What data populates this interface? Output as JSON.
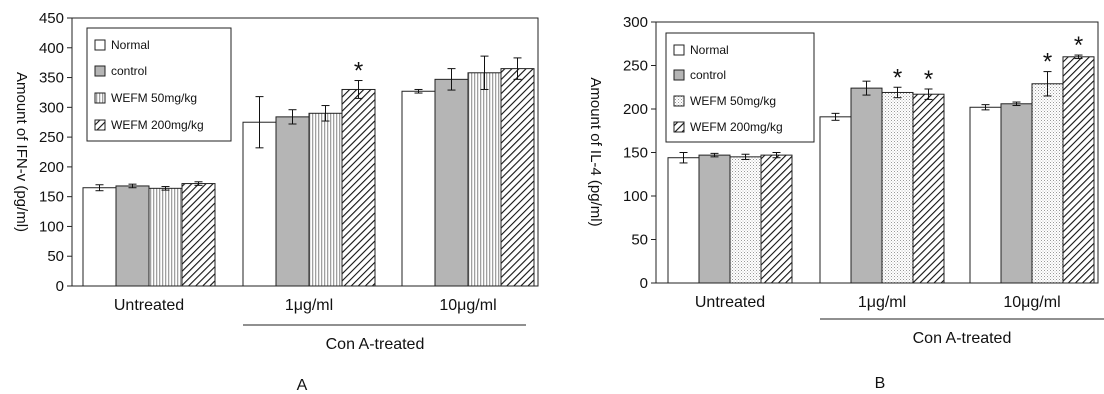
{
  "chart_data": [
    {
      "type": "bar",
      "panel_label": "A",
      "ylabel": "Amount of IFN-v (pg/ml)",
      "ylim": [
        0,
        450
      ],
      "yticks": [
        0,
        50,
        100,
        150,
        200,
        250,
        300,
        350,
        400,
        450
      ],
      "categories": [
        "Untreated",
        "1μg/ml",
        "10μg/ml"
      ],
      "group_label": "Con A-treated",
      "legend_position": "top-left",
      "series": [
        {
          "name": "Normal",
          "values": [
            165,
            275,
            327
          ],
          "errors": [
            5,
            43,
            3
          ],
          "pattern": "white",
          "significant": [
            false,
            false,
            false
          ]
        },
        {
          "name": "control",
          "values": [
            168,
            284,
            347
          ],
          "errors": [
            3,
            12,
            18
          ],
          "pattern": "gray",
          "significant": [
            false,
            false,
            false
          ]
        },
        {
          "name": "WEFM 50mg/kg",
          "values": [
            164,
            290,
            358
          ],
          "errors": [
            3,
            13,
            28
          ],
          "pattern": "vertical",
          "significant": [
            false,
            false,
            false
          ]
        },
        {
          "name": "WEFM 200mg/kg",
          "values": [
            172,
            330,
            365
          ],
          "errors": [
            3,
            15,
            18
          ],
          "pattern": "diagonal",
          "significant": [
            false,
            true,
            false
          ]
        }
      ],
      "significance_mark": "*"
    },
    {
      "type": "bar",
      "panel_label": "B",
      "ylabel": "Amount of IL-4 (pg/ml)",
      "ylim": [
        0,
        300
      ],
      "yticks": [
        0,
        50,
        100,
        150,
        200,
        250,
        300
      ],
      "categories": [
        "Untreated",
        "1μg/ml",
        "10μg/ml"
      ],
      "group_label": "Con A-treated",
      "legend_position": "top-left",
      "series": [
        {
          "name": "Normal",
          "values": [
            144,
            191,
            202
          ],
          "errors": [
            6,
            4,
            3
          ],
          "pattern": "white",
          "significant": [
            false,
            false,
            false
          ]
        },
        {
          "name": "control",
          "values": [
            147,
            224,
            206
          ],
          "errors": [
            2,
            8,
            2
          ],
          "pattern": "gray",
          "significant": [
            false,
            false,
            false
          ]
        },
        {
          "name": "WEFM 50mg/kg",
          "values": [
            145,
            219,
            229
          ],
          "errors": [
            3,
            6,
            14
          ],
          "pattern": "dotted",
          "significant": [
            false,
            true,
            true
          ]
        },
        {
          "name": "WEFM 200mg/kg",
          "values": [
            147,
            217,
            260
          ],
          "errors": [
            3,
            6,
            2
          ],
          "pattern": "diagonal",
          "significant": [
            false,
            true,
            true
          ]
        }
      ],
      "significance_mark": "*"
    }
  ]
}
